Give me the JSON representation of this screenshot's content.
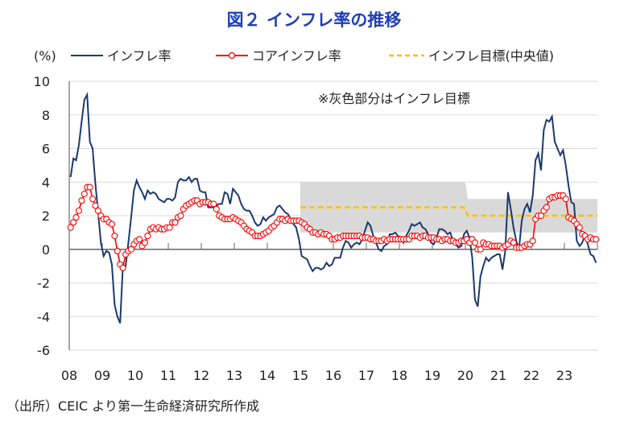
{
  "chart_data": {
    "type": "line",
    "title": "図２ インフレ率の推移",
    "ylabel": "(%)",
    "ylim": [
      -6,
      10
    ],
    "yticks": [
      10,
      8,
      6,
      4,
      2,
      0,
      -2,
      -4,
      -6
    ],
    "x_start": "2008-01",
    "frequency": "monthly",
    "xtick_labels": [
      "08",
      "09",
      "10",
      "11",
      "12",
      "13",
      "14",
      "15",
      "16",
      "17",
      "18",
      "19",
      "20",
      "21",
      "22",
      "23"
    ],
    "annotation": "※灰色部分はインフレ目標",
    "source": "（出所）CEIC より第一生命経済研究所作成",
    "legend": {
      "position": "top",
      "entries": [
        "インフレ率",
        "コアインフレ率",
        "インフレ目標(中央値)"
      ]
    },
    "colors": {
      "headline": "#1b3a6e",
      "core": "#ff0000",
      "target": "#ffc000",
      "band": "#d9d9d9",
      "title": "#1f3fb5"
    },
    "series": [
      {
        "name": "インフレ率",
        "values": [
          4.3,
          5.4,
          5.3,
          6.2,
          7.6,
          8.9,
          9.2,
          6.4,
          6.0,
          3.9,
          2.2,
          0.4,
          -0.4,
          -0.1,
          -0.2,
          -0.9,
          -3.3,
          -4.0,
          -4.4,
          -1.0,
          -1.0,
          0.4,
          1.9,
          3.5,
          4.1,
          3.7,
          3.4,
          3.0,
          3.5,
          3.3,
          3.4,
          3.3,
          3.0,
          2.9,
          2.8,
          3.0,
          3.0,
          2.9,
          3.1,
          4.0,
          4.2,
          4.1,
          4.1,
          4.3,
          4.0,
          4.2,
          4.2,
          3.5,
          3.4,
          3.4,
          2.5,
          2.5,
          2.5,
          2.6,
          2.7,
          2.7,
          3.4,
          3.3,
          2.7,
          3.6,
          3.4,
          3.2,
          2.7,
          2.4,
          2.3,
          2.3,
          2.0,
          1.6,
          1.4,
          1.5,
          1.9,
          1.7,
          1.9,
          2.0,
          2.1,
          2.5,
          2.6,
          2.4,
          2.2,
          2.1,
          1.8,
          1.5,
          1.3,
          0.6,
          -0.4,
          -0.5,
          -0.6,
          -1.0,
          -1.3,
          -1.1,
          -1.1,
          -1.2,
          -1.1,
          -0.8,
          -1.0,
          -0.9,
          -0.5,
          -0.5,
          -0.5,
          0.1,
          0.5,
          0.4,
          0.1,
          0.3,
          0.4,
          0.3,
          0.6,
          1.1,
          1.6,
          1.4,
          0.8,
          0.4,
          0.0,
          -0.1,
          0.2,
          0.3,
          0.9,
          0.9,
          1.0,
          0.8,
          0.7,
          0.4,
          0.8,
          1.1,
          1.5,
          1.4,
          1.5,
          1.6,
          1.3,
          1.2,
          0.9,
          0.4,
          0.3,
          0.7,
          1.2,
          1.2,
          1.1,
          0.9,
          1.0,
          0.5,
          0.3,
          0.1,
          0.2,
          0.9,
          1.1,
          0.7,
          -0.5,
          -3.0,
          -3.4,
          -1.6,
          -1.0,
          -0.5,
          -0.7,
          -0.5,
          -0.4,
          -0.3,
          -0.3,
          -1.2,
          -0.1,
          3.4,
          2.4,
          1.3,
          0.5,
          0.0,
          1.7,
          2.4,
          2.7,
          2.2,
          3.2,
          5.3,
          5.7,
          4.7,
          7.1,
          7.7,
          7.6,
          7.9,
          6.4,
          6.0,
          5.6,
          5.9,
          5.0,
          3.8,
          2.8,
          2.7,
          0.5,
          0.2,
          0.4,
          0.9,
          0.3,
          -0.3,
          -0.4,
          -0.8
        ]
      },
      {
        "name": "コアインフレ率",
        "values": [
          1.3,
          1.6,
          1.9,
          2.3,
          2.9,
          3.3,
          3.7,
          3.7,
          3.0,
          2.6,
          2.3,
          2.0,
          1.8,
          1.8,
          1.6,
          1.5,
          0.8,
          -0.1,
          -0.9,
          -1.1,
          -0.3,
          -0.1,
          0.0,
          0.3,
          0.5,
          0.6,
          0.2,
          0.4,
          0.8,
          1.2,
          1.3,
          1.2,
          1.3,
          1.2,
          1.2,
          1.3,
          1.3,
          1.6,
          1.6,
          1.9,
          2.0,
          2.4,
          2.6,
          2.7,
          2.8,
          2.9,
          2.9,
          2.7,
          2.8,
          2.8,
          2.8,
          2.7,
          2.7,
          2.4,
          2.0,
          1.9,
          1.8,
          1.8,
          1.8,
          1.9,
          1.8,
          1.7,
          1.6,
          1.4,
          1.2,
          1.1,
          1.0,
          0.8,
          0.8,
          0.8,
          0.9,
          1.0,
          1.1,
          1.3,
          1.4,
          1.6,
          1.8,
          1.8,
          1.7,
          1.8,
          1.7,
          1.7,
          1.7,
          1.7,
          1.6,
          1.5,
          1.3,
          1.2,
          1.0,
          1.0,
          0.9,
          1.0,
          0.9,
          0.9,
          0.8,
          0.6,
          0.6,
          0.7,
          0.7,
          0.8,
          0.8,
          0.8,
          0.8,
          0.8,
          0.8,
          0.8,
          0.7,
          0.7,
          0.7,
          0.6,
          0.6,
          0.5,
          0.5,
          0.5,
          0.6,
          0.5,
          0.6,
          0.6,
          0.6,
          0.6,
          0.6,
          0.6,
          0.6,
          0.6,
          0.8,
          0.8,
          0.8,
          0.7,
          0.8,
          0.8,
          0.7,
          0.7,
          0.7,
          0.6,
          0.6,
          0.5,
          0.6,
          0.6,
          0.5,
          0.5,
          0.4,
          0.4,
          0.5,
          0.5,
          0.6,
          0.4,
          0.6,
          0.4,
          0.0,
          0.0,
          0.4,
          0.3,
          0.3,
          0.2,
          0.2,
          0.2,
          0.2,
          0.1,
          0.2,
          0.3,
          0.5,
          0.4,
          0.1,
          0.1,
          0.1,
          0.2,
          0.3,
          0.3,
          0.5,
          1.8,
          2.0,
          2.0,
          2.3,
          2.5,
          3.0,
          3.1,
          3.1,
          3.2,
          3.2,
          3.2,
          3.0,
          1.9,
          1.8,
          1.7,
          1.5,
          1.3,
          0.9,
          0.8,
          0.6,
          0.7,
          0.6,
          0.6
        ]
      }
    ],
    "target_periods": [
      {
        "from": "2015-01",
        "to": "2019-12",
        "midpoint": 2.5,
        "range": [
          1,
          4
        ]
      },
      {
        "from": "2020-01",
        "to": "2023-12",
        "midpoint": 2.0,
        "range": [
          1,
          3
        ]
      }
    ]
  }
}
